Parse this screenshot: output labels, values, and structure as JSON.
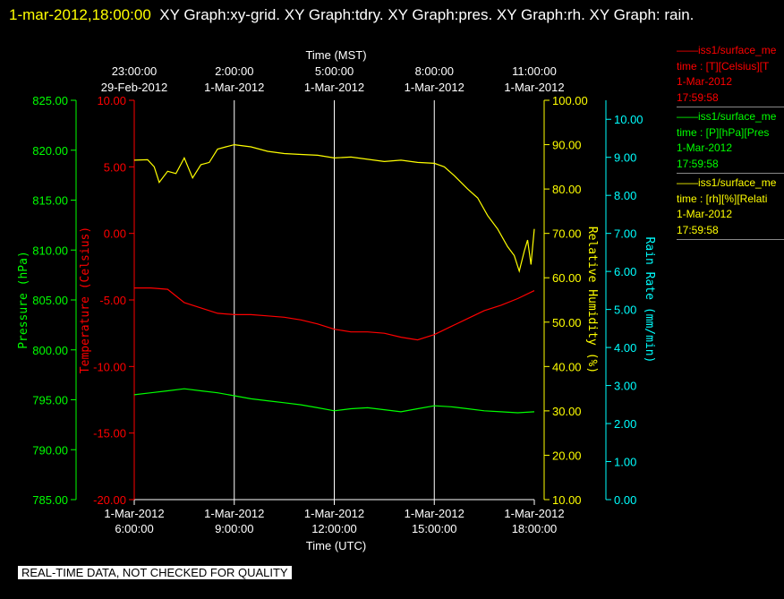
{
  "title": {
    "timestamp": "1-mar-2012,18:00:00",
    "graphs": "XY Graph:xy-grid.  XY Graph:tdry.  XY Graph:pres.  XY Graph:rh.  XY Graph: rain."
  },
  "legend": [
    {
      "name": "iss1/surface_me",
      "units": "time : [T][Celsius][T",
      "date": "1-Mar-2012",
      "time": "17:59:58",
      "color": "#ff0000"
    },
    {
      "name": "iss1/surface_me",
      "units": "time : [P][hPa][Pres",
      "date": "1-Mar-2012",
      "time": "17:59:58",
      "color": "#00ff00"
    },
    {
      "name": "iss1/surface_me",
      "units": "time : [rh][%][Relati",
      "date": "1-Mar-2012",
      "time": "17:59:58",
      "color": "#ffff00"
    }
  ],
  "quality_note": "REAL-TIME DATA, NOT CHECKED FOR QUALITY",
  "chart_data": {
    "type": "line",
    "x_range": [
      6.0,
      18.0
    ],
    "xlabel_bottom": "Time (UTC)",
    "xlabel_top": "Time (MST)",
    "bottom_ticks": [
      {
        "x": 6,
        "line1": "1-Mar-2012",
        "line2": "6:00:00"
      },
      {
        "x": 9,
        "line1": "1-Mar-2012",
        "line2": "9:00:00"
      },
      {
        "x": 12,
        "line1": "1-Mar-2012",
        "line2": "12:00:00"
      },
      {
        "x": 15,
        "line1": "1-Mar-2012",
        "line2": "15:00:00"
      },
      {
        "x": 18,
        "line1": "1-Mar-2012",
        "line2": "18:00:00"
      }
    ],
    "top_ticks": [
      {
        "x": 6,
        "line1": "23:00:00",
        "line2": "29-Feb-2012"
      },
      {
        "x": 9,
        "line1": "2:00:00",
        "line2": "1-Mar-2012"
      },
      {
        "x": 12,
        "line1": "5:00:00",
        "line2": "1-Mar-2012"
      },
      {
        "x": 15,
        "line1": "8:00:00",
        "line2": "1-Mar-2012"
      },
      {
        "x": 18,
        "line1": "11:00:00",
        "line2": "1-Mar-2012"
      }
    ],
    "axes": {
      "pressure": {
        "label": "Pressure (hPa)",
        "range": [
          785,
          825
        ],
        "step": 5,
        "color": "#00ff00"
      },
      "temperature": {
        "label": "Temperature (Celsius)",
        "range": [
          -20,
          10
        ],
        "step": 5,
        "color": "#ff0000"
      },
      "humidity": {
        "label": "Relative Humidity (%)",
        "range": [
          10,
          100
        ],
        "step": 10,
        "color": "#ffff00"
      },
      "rain": {
        "label": "Rain Rate (mm/min)",
        "range": [
          0,
          10.5
        ],
        "tick_max": 10,
        "step": 1,
        "color": "#00ffff"
      }
    },
    "grid": true,
    "series": [
      {
        "axis": "temperature",
        "color": "#ff0000",
        "points": [
          [
            6.0,
            -4.1
          ],
          [
            6.5,
            -4.1
          ],
          [
            7.0,
            -4.2
          ],
          [
            7.5,
            -5.2
          ],
          [
            8.0,
            -5.6
          ],
          [
            8.5,
            -6.0
          ],
          [
            9.0,
            -6.1
          ],
          [
            9.5,
            -6.1
          ],
          [
            10.0,
            -6.2
          ],
          [
            10.5,
            -6.3
          ],
          [
            11.0,
            -6.5
          ],
          [
            11.5,
            -6.8
          ],
          [
            12.0,
            -7.2
          ],
          [
            12.5,
            -7.4
          ],
          [
            13.0,
            -7.4
          ],
          [
            13.5,
            -7.5
          ],
          [
            14.0,
            -7.8
          ],
          [
            14.5,
            -8.0
          ],
          [
            15.0,
            -7.6
          ],
          [
            15.5,
            -7.0
          ],
          [
            16.0,
            -6.4
          ],
          [
            16.5,
            -5.8
          ],
          [
            17.0,
            -5.4
          ],
          [
            17.5,
            -4.9
          ],
          [
            18.0,
            -4.3
          ]
        ]
      },
      {
        "axis": "pressure",
        "color": "#00ff00",
        "points": [
          [
            6.0,
            795.5
          ],
          [
            6.5,
            795.7
          ],
          [
            7.0,
            795.9
          ],
          [
            7.5,
            796.1
          ],
          [
            8.0,
            795.9
          ],
          [
            8.5,
            795.7
          ],
          [
            9.0,
            795.4
          ],
          [
            9.5,
            795.1
          ],
          [
            10.0,
            794.9
          ],
          [
            10.5,
            794.7
          ],
          [
            11.0,
            794.5
          ],
          [
            11.5,
            794.2
          ],
          [
            12.0,
            793.9
          ],
          [
            12.5,
            794.1
          ],
          [
            13.0,
            794.2
          ],
          [
            13.5,
            794.0
          ],
          [
            14.0,
            793.8
          ],
          [
            14.5,
            794.1
          ],
          [
            15.0,
            794.4
          ],
          [
            15.5,
            794.3
          ],
          [
            16.0,
            794.1
          ],
          [
            16.5,
            793.9
          ],
          [
            17.0,
            793.8
          ],
          [
            17.5,
            793.7
          ],
          [
            18.0,
            793.8
          ]
        ]
      },
      {
        "axis": "humidity",
        "color": "#ffff00",
        "points": [
          [
            6.0,
            86.5
          ],
          [
            6.4,
            86.6
          ],
          [
            6.6,
            85.0
          ],
          [
            6.75,
            81.5
          ],
          [
            7.0,
            84.0
          ],
          [
            7.25,
            83.5
          ],
          [
            7.5,
            87.0
          ],
          [
            7.75,
            82.5
          ],
          [
            8.0,
            85.5
          ],
          [
            8.25,
            86.0
          ],
          [
            8.5,
            89.0
          ],
          [
            8.75,
            89.5
          ],
          [
            9.0,
            90.0
          ],
          [
            9.5,
            89.5
          ],
          [
            10.0,
            88.5
          ],
          [
            10.5,
            88.0
          ],
          [
            11.0,
            87.8
          ],
          [
            11.5,
            87.6
          ],
          [
            12.0,
            87.0
          ],
          [
            12.5,
            87.2
          ],
          [
            13.0,
            86.7
          ],
          [
            13.5,
            86.2
          ],
          [
            14.0,
            86.5
          ],
          [
            14.5,
            86.0
          ],
          [
            15.0,
            85.8
          ],
          [
            15.3,
            85.0
          ],
          [
            15.6,
            83.0
          ],
          [
            16.0,
            80.0
          ],
          [
            16.3,
            78.0
          ],
          [
            16.6,
            74.0
          ],
          [
            16.9,
            71.0
          ],
          [
            17.2,
            67.0
          ],
          [
            17.4,
            65.0
          ],
          [
            17.55,
            61.5
          ],
          [
            17.7,
            66.0
          ],
          [
            17.8,
            68.5
          ],
          [
            17.9,
            63.0
          ],
          [
            18.0,
            71.0
          ]
        ]
      }
    ]
  }
}
